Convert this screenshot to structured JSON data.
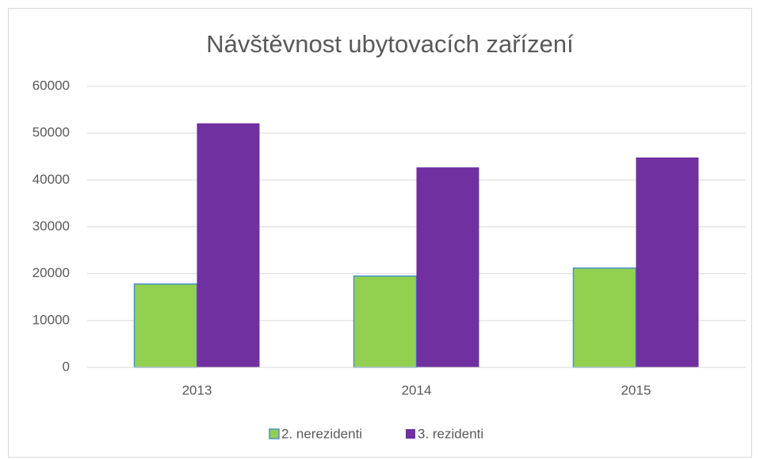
{
  "chart_data": {
    "type": "bar",
    "title": "Návštěvnost ubytovacích zařízení",
    "categories": [
      "2013",
      "2014",
      "2015"
    ],
    "series": [
      {
        "name": "2. nerezidenti",
        "color": "#92d050",
        "values": [
          17800,
          19500,
          21200
        ]
      },
      {
        "name": "3. rezidenti",
        "color": "#7030a0",
        "values": [
          52100,
          42700,
          44800
        ]
      }
    ],
    "ylim": [
      0,
      60000
    ],
    "yticks": [
      0,
      10000,
      20000,
      30000,
      40000,
      50000,
      60000
    ],
    "grid": true,
    "legend": "bottom"
  }
}
